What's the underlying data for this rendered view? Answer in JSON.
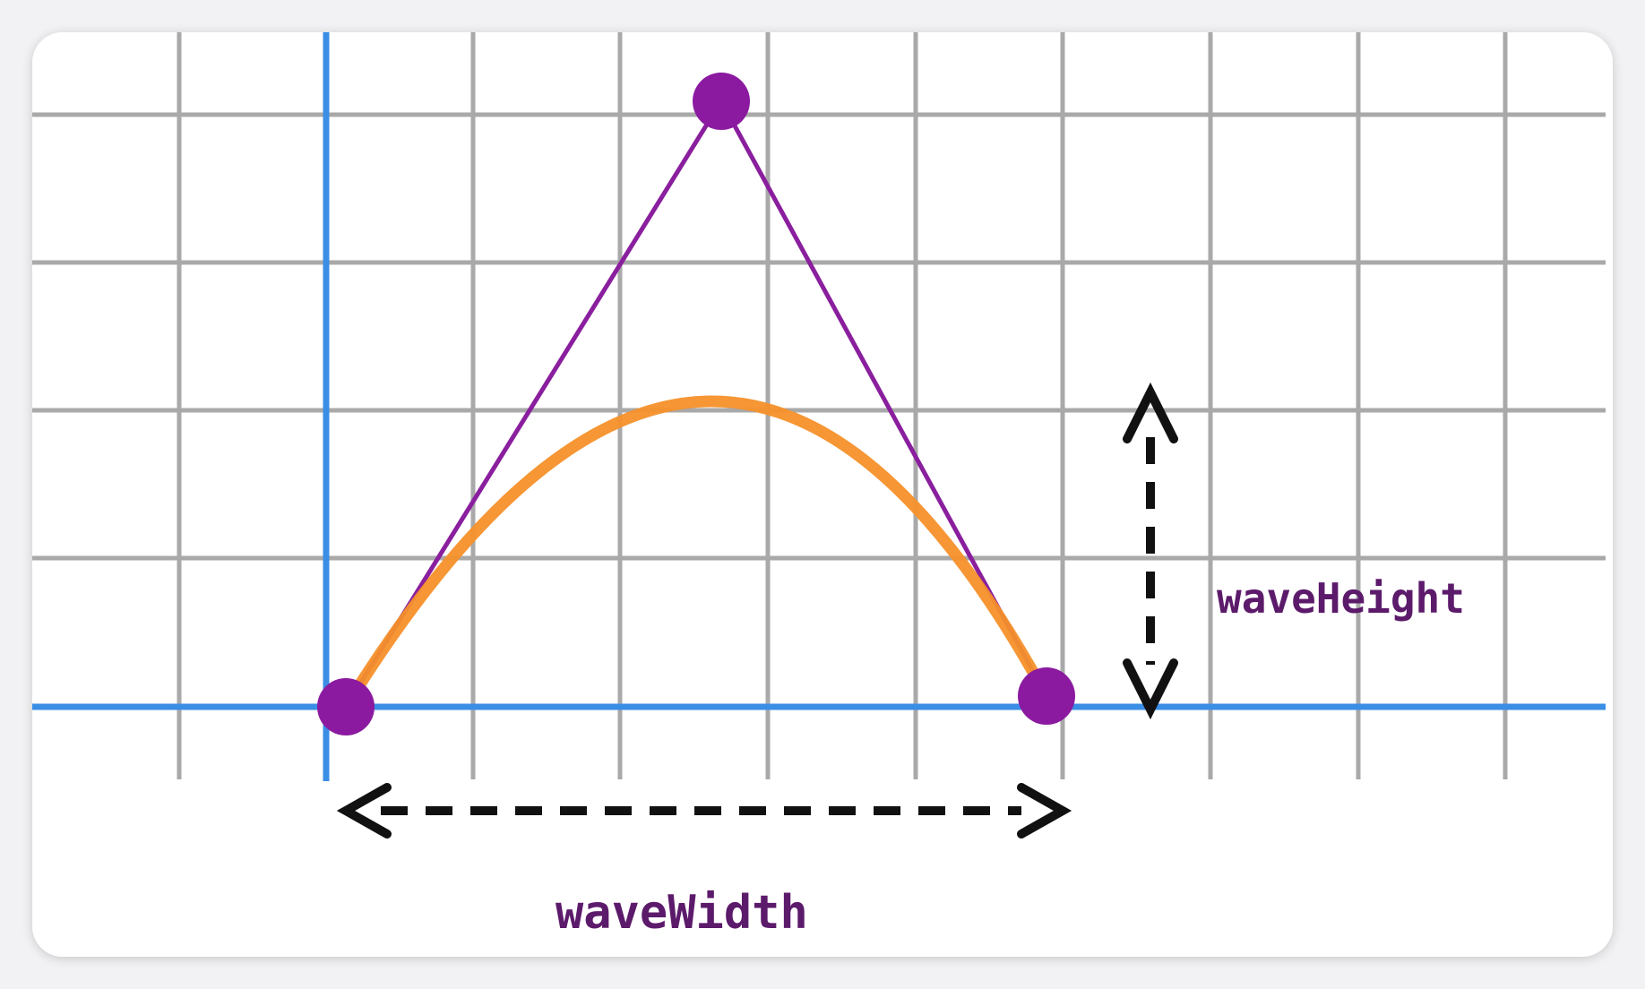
{
  "labels": {
    "wave_height": "waveHeight",
    "wave_width": "waveWidth"
  },
  "colors": {
    "card_background": "#ffffff",
    "grid_line": "#a9a9a9",
    "axis": "#3a8ee6",
    "control_polygon": "#8a1f9e",
    "control_point": "#8b1aa0",
    "curve": "#f5902a",
    "arrow": "#111111",
    "label": "#5c1a6b"
  }
}
